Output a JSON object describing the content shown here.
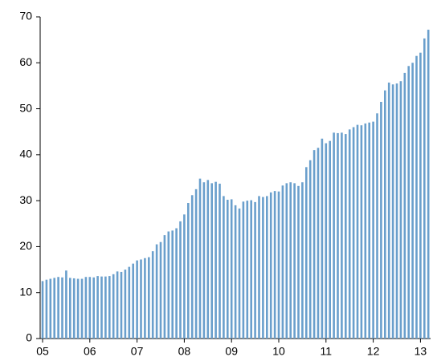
{
  "chart_data": {
    "type": "bar",
    "categories": [
      "05",
      null,
      null,
      null,
      null,
      null,
      null,
      null,
      null,
      null,
      null,
      null,
      "06",
      null,
      null,
      null,
      null,
      null,
      null,
      null,
      null,
      null,
      null,
      null,
      "07",
      null,
      null,
      null,
      null,
      null,
      null,
      null,
      null,
      null,
      null,
      null,
      "08",
      null,
      null,
      null,
      null,
      null,
      null,
      null,
      null,
      null,
      null,
      null,
      "09",
      null,
      null,
      null,
      null,
      null,
      null,
      null,
      null,
      null,
      null,
      null,
      "10",
      null,
      null,
      null,
      null,
      null,
      null,
      null,
      null,
      null,
      null,
      null,
      "11",
      null,
      null,
      null,
      null,
      null,
      null,
      null,
      null,
      null,
      null,
      null,
      "12",
      null,
      null,
      null,
      null,
      null,
      null,
      null,
      null,
      null,
      null,
      null,
      "13",
      null,
      null
    ],
    "values": [
      12.5,
      12.8,
      13,
      13.2,
      13.4,
      13.3,
      14.8,
      13.2,
      13.1,
      13,
      13,
      13.4,
      13.4,
      13.3,
      13.6,
      13.5,
      13.5,
      13.6,
      14,
      14.6,
      14.5,
      15,
      15.6,
      16.3,
      17,
      17.2,
      17.5,
      17.7,
      19,
      20.5,
      21,
      22.5,
      23.3,
      23.5,
      24,
      25.5,
      27,
      29.5,
      31.2,
      32.5,
      34.8,
      34,
      34.5,
      33.8,
      34.1,
      33.7,
      31,
      30.2,
      30.3,
      29,
      28.3,
      29.8,
      30,
      30.1,
      29.7,
      31,
      30.8,
      31,
      31.8,
      32.1,
      32,
      33.3,
      33.8,
      34,
      33.8,
      33.2,
      34,
      37.3,
      38.8,
      41,
      41.5,
      43.5,
      42.5,
      43,
      44.8,
      44.7,
      44.8,
      44.5,
      45.5,
      46,
      46.5,
      46.4,
      46.8,
      47,
      47.2,
      49,
      51.5,
      54,
      55.7,
      55.3,
      55.5,
      56,
      57.8,
      59.3,
      60,
      61.5,
      62.2,
      65.3,
      67.2
    ],
    "color": "#6a9fcc",
    "ylim": [
      0,
      70
    ],
    "yticks": [
      0,
      10,
      20,
      30,
      40,
      50,
      60,
      70
    ],
    "grid": false
  }
}
